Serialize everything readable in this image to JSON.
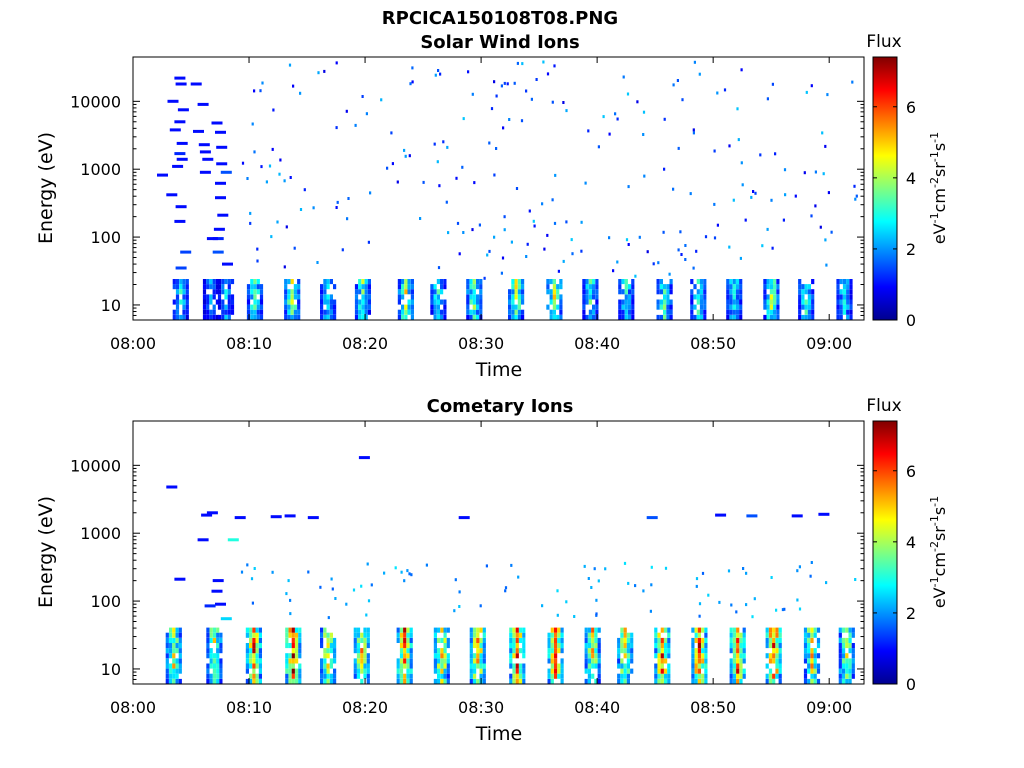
{
  "figure": {
    "title": "RPCICA150108T08.PNG",
    "colorbar_colors": [
      "#00008f",
      "#0000ff",
      "#0080ff",
      "#00ffff",
      "#80ff80",
      "#ffff00",
      "#ff8000",
      "#ff0000",
      "#800000"
    ]
  },
  "chart_data": [
    {
      "type": "heatmap",
      "title": "Solar Wind Ions",
      "xlabel": "Time",
      "ylabel": "Energy (eV)",
      "x_ticks": [
        "08:00",
        "08:10",
        "08:20",
        "08:30",
        "08:40",
        "08:50",
        "09:00"
      ],
      "y_ticks": [
        "10",
        "100",
        "1000",
        "10000"
      ],
      "y_scale": "log",
      "xlim_minutes": [
        0,
        63
      ],
      "ylim_eV": [
        6,
        45000
      ],
      "colorbar": {
        "title": "Flux",
        "label": "eV-1cm-2sr-1s-1",
        "ticks": [
          "0",
          "2",
          "4",
          "6"
        ],
        "range": [
          0,
          7.4
        ]
      },
      "low_energy_band": {
        "e_min": 6,
        "e_max": 24
      },
      "scatter_energy_range": [
        25,
        40000
      ],
      "bursts": [
        {
          "t": 4.1,
          "peak": 3.0
        },
        {
          "t": 6.7,
          "peak": 2.2
        },
        {
          "t": 8.0,
          "peak": 2.6
        },
        {
          "t": 10.5,
          "peak": 3.6
        },
        {
          "t": 13.7,
          "peak": 4.4
        },
        {
          "t": 16.8,
          "peak": 3.4
        },
        {
          "t": 19.8,
          "peak": 3.8
        },
        {
          "t": 23.5,
          "peak": 4.6
        },
        {
          "t": 26.3,
          "peak": 3.4
        },
        {
          "t": 29.4,
          "peak": 4.2
        },
        {
          "t": 33.0,
          "peak": 4.4
        },
        {
          "t": 36.3,
          "peak": 4.8
        },
        {
          "t": 39.4,
          "peak": 3.6
        },
        {
          "t": 42.5,
          "peak": 3.2
        },
        {
          "t": 45.8,
          "peak": 3.8
        },
        {
          "t": 48.7,
          "peak": 3.6
        },
        {
          "t": 51.8,
          "peak": 3.4
        },
        {
          "t": 55.0,
          "peak": 4.2
        },
        {
          "t": 58.0,
          "peak": 3.6
        },
        {
          "t": 61.3,
          "peak": 3.2
        }
      ],
      "early_lines": [
        {
          "t": 4.0,
          "e": 22000,
          "v": 1.0
        },
        {
          "t": 4.1,
          "e": 18000,
          "v": 1.0
        },
        {
          "t": 3.4,
          "e": 10000,
          "v": 1.0
        },
        {
          "t": 4.3,
          "e": 7500,
          "v": 1.0
        },
        {
          "t": 4.0,
          "e": 5000,
          "v": 1.0
        },
        {
          "t": 3.6,
          "e": 3800,
          "v": 1.0
        },
        {
          "t": 4.2,
          "e": 2400,
          "v": 1.0
        },
        {
          "t": 4.0,
          "e": 1700,
          "v": 1.2
        },
        {
          "t": 4.2,
          "e": 1400,
          "v": 1.0
        },
        {
          "t": 3.8,
          "e": 1100,
          "v": 1.0
        },
        {
          "t": 2.5,
          "e": 820,
          "v": 1.0
        },
        {
          "t": 3.3,
          "e": 420,
          "v": 1.0
        },
        {
          "t": 4.1,
          "e": 280,
          "v": 1.0
        },
        {
          "t": 4.0,
          "e": 170,
          "v": 1.0
        },
        {
          "t": 4.5,
          "e": 60,
          "v": 1.4
        },
        {
          "t": 4.1,
          "e": 35,
          "v": 1.4
        },
        {
          "t": 5.4,
          "e": 18000,
          "v": 1.0
        },
        {
          "t": 6.0,
          "e": 9000,
          "v": 1.0
        },
        {
          "t": 5.6,
          "e": 3600,
          "v": 1.0
        },
        {
          "t": 6.1,
          "e": 2300,
          "v": 1.0
        },
        {
          "t": 6.2,
          "e": 1800,
          "v": 1.0
        },
        {
          "t": 6.4,
          "e": 1400,
          "v": 1.0
        },
        {
          "t": 6.2,
          "e": 900,
          "v": 1.0
        },
        {
          "t": 7.2,
          "e": 4800,
          "v": 1.0
        },
        {
          "t": 7.5,
          "e": 3500,
          "v": 1.0
        },
        {
          "t": 7.6,
          "e": 2100,
          "v": 1.0
        },
        {
          "t": 7.6,
          "e": 1200,
          "v": 1.0
        },
        {
          "t": 7.5,
          "e": 620,
          "v": 1.0
        },
        {
          "t": 7.5,
          "e": 380,
          "v": 1.0
        },
        {
          "t": 7.7,
          "e": 210,
          "v": 1.0
        },
        {
          "t": 7.4,
          "e": 130,
          "v": 1.0
        },
        {
          "t": 7.3,
          "e": 95,
          "v": 1.2
        },
        {
          "t": 6.8,
          "e": 95,
          "v": 1.0
        },
        {
          "t": 7.3,
          "e": 60,
          "v": 1.5
        },
        {
          "t": 8.1,
          "e": 40,
          "v": 1.0
        },
        {
          "t": 8.0,
          "e": 900,
          "v": 1.5
        }
      ],
      "scatter_seed": 7,
      "scatter_count": 230,
      "scatter_value_range": [
        0.7,
        2.4
      ]
    },
    {
      "type": "heatmap",
      "title": "Cometary Ions",
      "xlabel": "Time",
      "ylabel": "Energy (eV)",
      "x_ticks": [
        "08:00",
        "08:10",
        "08:20",
        "08:30",
        "08:40",
        "08:50",
        "09:00"
      ],
      "y_ticks": [
        "10",
        "100",
        "1000",
        "10000"
      ],
      "y_scale": "log",
      "xlim_minutes": [
        0,
        63
      ],
      "ylim_eV": [
        6,
        45000
      ],
      "colorbar": {
        "title": "Flux",
        "label": "eV-1cm-2sr-1s-1",
        "ticks": [
          "0",
          "2",
          "4",
          "6"
        ],
        "range": [
          0,
          7.4
        ]
      },
      "low_energy_band": {
        "e_min": 6,
        "e_max": 35
      },
      "scatter_energy_range": [
        60,
        400
      ],
      "bursts": [
        {
          "t": 3.5,
          "peak": 4.8
        },
        {
          "t": 7.0,
          "peak": 4.6
        },
        {
          "t": 10.4,
          "peak": 6.2
        },
        {
          "t": 13.8,
          "peak": 6.8
        },
        {
          "t": 16.8,
          "peak": 5.2
        },
        {
          "t": 19.7,
          "peak": 5.2
        },
        {
          "t": 23.4,
          "peak": 6.2
        },
        {
          "t": 26.6,
          "peak": 5.4
        },
        {
          "t": 29.7,
          "peak": 6.0
        },
        {
          "t": 33.1,
          "peak": 6.8
        },
        {
          "t": 36.4,
          "peak": 6.4
        },
        {
          "t": 39.6,
          "peak": 5.2
        },
        {
          "t": 42.4,
          "peak": 5.0
        },
        {
          "t": 45.6,
          "peak": 6.2
        },
        {
          "t": 48.8,
          "peak": 6.4
        },
        {
          "t": 52.1,
          "peak": 6.0
        },
        {
          "t": 55.2,
          "peak": 6.8
        },
        {
          "t": 58.5,
          "peak": 5.0
        },
        {
          "t": 61.5,
          "peak": 4.6
        }
      ],
      "early_lines": [
        {
          "t": 3.3,
          "e": 4800,
          "v": 1.0
        },
        {
          "t": 4.0,
          "e": 210,
          "v": 1.0
        },
        {
          "t": 6.3,
          "e": 1850,
          "v": 1.0
        },
        {
          "t": 6.8,
          "e": 2000,
          "v": 1.0
        },
        {
          "t": 6.0,
          "e": 800,
          "v": 1.0
        },
        {
          "t": 7.3,
          "e": 200,
          "v": 1.0
        },
        {
          "t": 7.2,
          "e": 140,
          "v": 1.0
        },
        {
          "t": 7.5,
          "e": 90,
          "v": 1.0
        },
        {
          "t": 6.6,
          "e": 85,
          "v": 1.2
        },
        {
          "t": 8.0,
          "e": 55,
          "v": 2.5
        },
        {
          "t": 8.6,
          "e": 800,
          "v": 3.0
        },
        {
          "t": 9.2,
          "e": 1700,
          "v": 1.0
        },
        {
          "t": 12.3,
          "e": 1750,
          "v": 1.0
        },
        {
          "t": 13.5,
          "e": 1800,
          "v": 1.0
        },
        {
          "t": 15.5,
          "e": 1700,
          "v": 1.0
        },
        {
          "t": 19.9,
          "e": 13000,
          "v": 1.0
        },
        {
          "t": 28.5,
          "e": 1700,
          "v": 1.0
        },
        {
          "t": 44.7,
          "e": 1700,
          "v": 1.5
        },
        {
          "t": 50.6,
          "e": 1850,
          "v": 1.0
        },
        {
          "t": 53.3,
          "e": 1800,
          "v": 1.5
        },
        {
          "t": 57.2,
          "e": 1800,
          "v": 1.0
        },
        {
          "t": 59.5,
          "e": 1900,
          "v": 1.0
        }
      ],
      "scatter_seed": 21,
      "scatter_count": 90,
      "scatter_value_range": [
        1.6,
        2.6
      ]
    }
  ]
}
